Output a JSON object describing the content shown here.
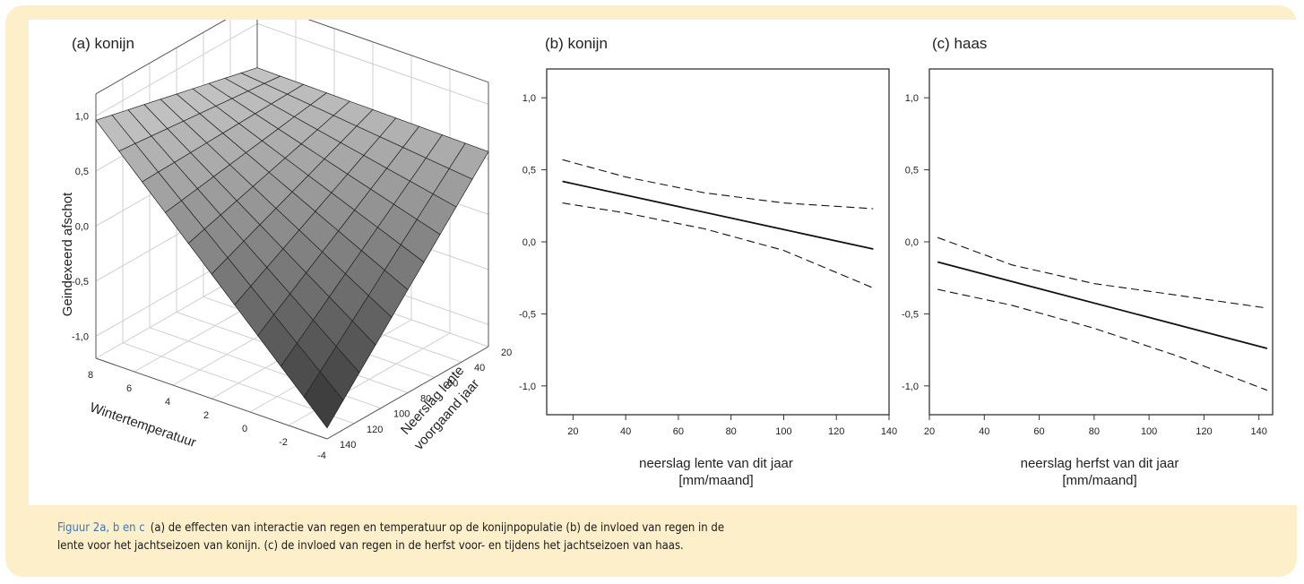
{
  "caption": {
    "lead": "Figuur 2a, b en c",
    "line1": "(a) de effecten van interactie van regen en temperatuur op de konijnpopulatie (b) de invloed van regen in de",
    "line2": "lente voor het jachtseizoen van konijn. (c) de invloed van regen in de herfst voor- en tijdens het jachtseizoen van haas."
  },
  "chart_data": [
    {
      "type": "surface",
      "title": "(a) konijn",
      "zlabel": "Geindexeerd afschot",
      "xlabel": "Wintertemperatuur",
      "ylabel_line1": "Neerslag lente",
      "ylabel_line2": "voorgaand jaar",
      "z_ticks": [
        "1,0",
        "0,5",
        "0,0",
        "-0,5",
        "-1,0"
      ],
      "x_ticks": [
        "8",
        "6",
        "4",
        "2",
        "0",
        "-2",
        "-4"
      ],
      "y_ticks": [
        "20",
        "40",
        "60",
        "80",
        "100",
        "120",
        "140"
      ],
      "zlim": [
        -1.0,
        1.0
      ],
      "corners": [
        {
          "temperature": 8,
          "rain": 140,
          "value": 0.96
        },
        {
          "temperature": -4,
          "rain": 20,
          "value": 0.57
        },
        {
          "temperature": -4,
          "rain": 140,
          "value": -1.1
        },
        {
          "temperature": 8,
          "rain": 20,
          "value": 0.6
        }
      ]
    },
    {
      "type": "line",
      "title": "(b) konijn",
      "xlabel_line1": "neerslag lente van dit jaar",
      "xlabel_line2": "[mm/maand]",
      "xlim": [
        10,
        140
      ],
      "ylim": [
        -1.2,
        1.2
      ],
      "x_ticks": [
        "20",
        "40",
        "60",
        "80",
        "100",
        "120",
        "140"
      ],
      "y_ticks": [
        "1,0",
        "0,5",
        "0,0",
        "-0,5",
        "-1,0"
      ],
      "series": [
        {
          "style": "solid",
          "x": [
            16,
            134
          ],
          "y": [
            0.42,
            -0.05
          ]
        },
        {
          "style": "dashed",
          "x": [
            16,
            40,
            70,
            100,
            134
          ],
          "y": [
            0.57,
            0.45,
            0.34,
            0.27,
            0.23
          ]
        },
        {
          "style": "dashed",
          "x": [
            16,
            40,
            70,
            100,
            134
          ],
          "y": [
            0.27,
            0.2,
            0.09,
            -0.06,
            -0.32
          ]
        }
      ]
    },
    {
      "type": "line",
      "title": "(c) haas",
      "xlabel_line1": "neerslag herfst van dit jaar",
      "xlabel_line2": "[mm/maand]",
      "xlim": [
        20,
        145
      ],
      "ylim": [
        -1.2,
        1.2
      ],
      "x_ticks": [
        "20",
        "40",
        "60",
        "80",
        "100",
        "120",
        "140"
      ],
      "y_ticks": [
        "1,0",
        "0,5",
        "0,0",
        "-0,5",
        "-1,0"
      ],
      "series": [
        {
          "style": "solid",
          "x": [
            23,
            143
          ],
          "y": [
            -0.14,
            -0.74
          ]
        },
        {
          "style": "dashed",
          "x": [
            23,
            50,
            80,
            110,
            143
          ],
          "y": [
            0.03,
            -0.16,
            -0.29,
            -0.37,
            -0.46
          ]
        },
        {
          "style": "dashed",
          "x": [
            23,
            50,
            80,
            110,
            143
          ],
          "y": [
            -0.33,
            -0.44,
            -0.6,
            -0.79,
            -1.03
          ]
        }
      ]
    }
  ]
}
